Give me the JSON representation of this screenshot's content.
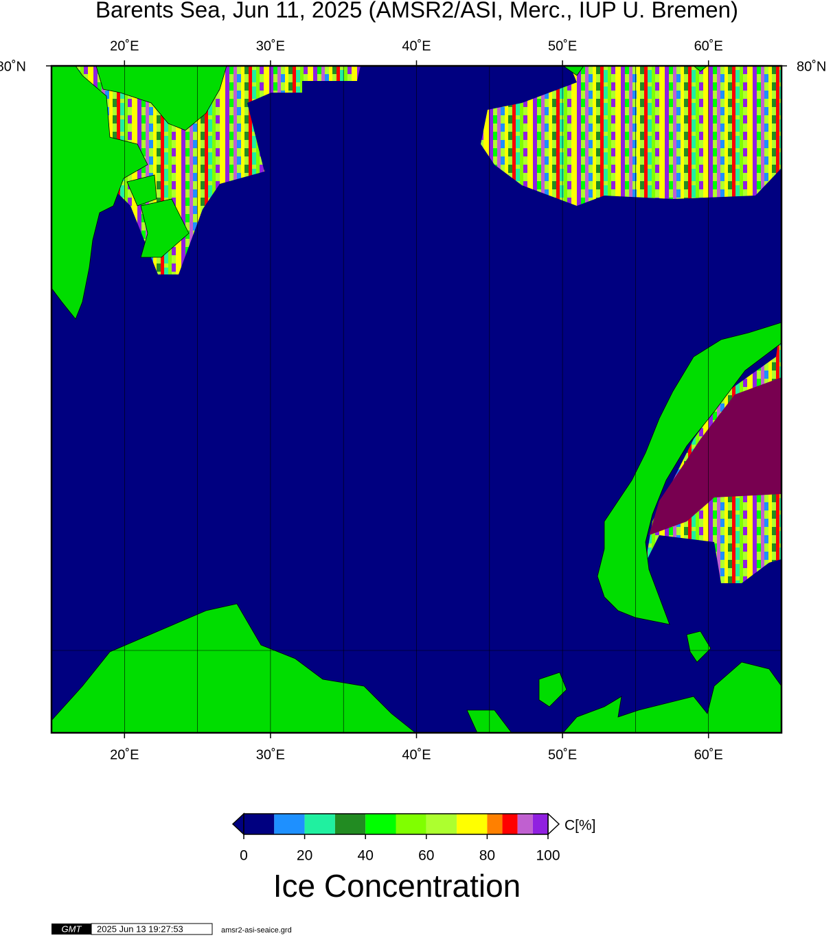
{
  "map": {
    "title": "Barents Sea, Jun 11, 2025 (AMSR2/ASI, Merc., IUP U. Bremen)",
    "lon_range": [
      15,
      65
    ],
    "lon_ticks": [
      {
        "value": 20,
        "label": "20˚E"
      },
      {
        "value": 30,
        "label": "30˚E"
      },
      {
        "value": 40,
        "label": "40˚E"
      },
      {
        "value": 50,
        "label": "50˚E"
      },
      {
        "value": 60,
        "label": "60˚E"
      }
    ],
    "lat_label": "80˚N"
  },
  "colorbar": {
    "bounds": [
      0,
      10,
      20,
      30,
      40,
      50,
      60,
      70,
      80,
      85,
      90,
      95,
      100
    ],
    "colors": [
      "#000080",
      "#1e90ff",
      "#20f0a0",
      "#228b22",
      "#00ff00",
      "#80ff00",
      "#adff2f",
      "#ffff00",
      "#ff8000",
      "#ff0000",
      "#c060d0",
      "#9020e0"
    ],
    "ticks": [
      0,
      20,
      40,
      60,
      80,
      100
    ],
    "unit": "C[%]",
    "label": "Ice Concentration"
  },
  "footer": {
    "logo": "GMT",
    "timestamp": "2025 Jun 13 19:27:53",
    "file": "amsr2-asi-seaice.grd"
  }
}
